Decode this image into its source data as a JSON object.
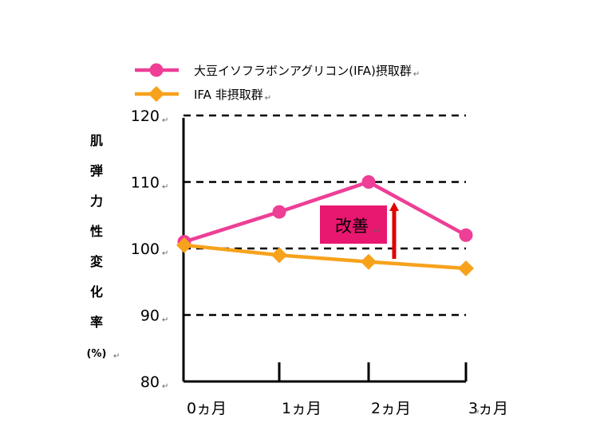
{
  "chart_data": {
    "type": "line",
    "categories": [
      "0ヵ月",
      "1ヵ月",
      "2ヵ月",
      "3ヵ月"
    ],
    "series": [
      {
        "name": "大豆イソフラボンアグリコン(IFA)摂取群",
        "values": [
          101,
          105.5,
          110,
          102
        ],
        "color": "#ee3e96",
        "marker": "circle"
      },
      {
        "name": "IFA 非摂取群",
        "values": [
          100.5,
          99,
          98,
          97
        ],
        "color": "#f7a21c",
        "marker": "diamond"
      }
    ],
    "ylabel_chars": [
      "肌",
      "弾",
      "力",
      "性",
      "変",
      "化",
      "率",
      "(%)"
    ],
    "yticks": [
      80,
      90,
      100,
      110,
      120
    ],
    "ylim": [
      80,
      120
    ],
    "grid_values": [
      90,
      100,
      110,
      120
    ],
    "grid_style": "dashed",
    "legend_position": "top",
    "annotation": {
      "label": "改善",
      "box_color": "#e8176f",
      "arrow_color": "#e00000",
      "arrow_from": 100,
      "arrow_to": 106
    },
    "return_mark": "↵"
  }
}
